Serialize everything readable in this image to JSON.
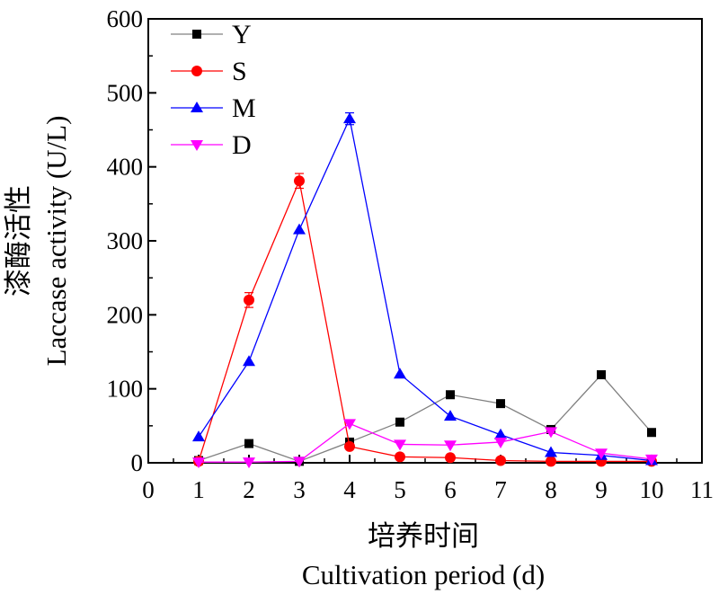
{
  "chart_data": {
    "type": "line",
    "title": "",
    "xlabel_cn": "培养时间",
    "xlabel": "Cultivation period (d)",
    "ylabel_cn": "漆酶活性",
    "ylabel": "Laccase activity (U/L)",
    "xlim": [
      0,
      11
    ],
    "ylim": [
      0,
      600
    ],
    "xticks": [
      0,
      1,
      2,
      3,
      4,
      5,
      6,
      7,
      8,
      9,
      10,
      11
    ],
    "yticks": [
      0,
      100,
      200,
      300,
      400,
      500,
      600
    ],
    "grid": false,
    "legend_position": "top-left",
    "x": [
      1,
      2,
      3,
      4,
      5,
      6,
      7,
      8,
      9,
      10
    ],
    "series": [
      {
        "name": "Y",
        "color": "#000000",
        "line_color": "#808080",
        "marker": "square",
        "values": [
          3,
          26,
          2,
          28,
          55,
          92,
          80,
          45,
          119,
          41
        ],
        "errors": [
          0,
          0,
          0,
          0,
          0,
          0,
          0,
          0,
          0,
          0
        ]
      },
      {
        "name": "S",
        "color": "#ff0000",
        "line_color": "#ff0000",
        "marker": "circle",
        "values": [
          2,
          220,
          381,
          22,
          8,
          7,
          3,
          2,
          2,
          2
        ],
        "errors": [
          0,
          10,
          10,
          0,
          0,
          0,
          0,
          0,
          0,
          0
        ]
      },
      {
        "name": "M",
        "color": "#0000ff",
        "line_color": "#0000ff",
        "marker": "triangle-up",
        "values": [
          35,
          137,
          315,
          465,
          120,
          63,
          38,
          14,
          10,
          3
        ],
        "errors": [
          0,
          0,
          0,
          8,
          0,
          0,
          0,
          0,
          0,
          0
        ]
      },
      {
        "name": "D",
        "color": "#ff00ff",
        "line_color": "#ff00ff",
        "marker": "triangle-down",
        "values": [
          1,
          1,
          2,
          53,
          25,
          24,
          28,
          42,
          13,
          5
        ],
        "errors": [
          0,
          0,
          0,
          0,
          0,
          0,
          0,
          0,
          0,
          0
        ]
      }
    ]
  }
}
